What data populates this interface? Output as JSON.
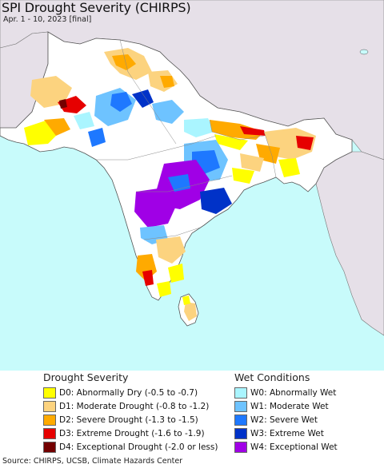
{
  "map": {
    "title": "SPI Drought Severity (CHIRPS)",
    "subtitle": "Apr. 1 - 10, 2023 [final]",
    "colors": {
      "ocean": "#c8fbfb",
      "land": "#ffffff",
      "outside_land": "#e6e0e8",
      "border": "#555555"
    }
  },
  "legend": {
    "drought": {
      "heading": "Drought Severity",
      "items": [
        {
          "label": "D0: Abnormally Dry (-0.5 to -0.7)",
          "color": "#ffff00"
        },
        {
          "label": "D1: Moderate Drought (-0.8 to -1.2)",
          "color": "#fcd37f"
        },
        {
          "label": "D2: Severe Drought (-1.3 to -1.5)",
          "color": "#ffaa00"
        },
        {
          "label": "D3: Extreme Drought (-1.6 to -1.9)",
          "color": "#e60000"
        },
        {
          "label": "D4: Exceptional Drought (-2.0 or less)",
          "color": "#730000"
        }
      ]
    },
    "wet": {
      "heading": "Wet Conditions",
      "items": [
        {
          "label": "W0: Abnormally Wet",
          "color": "#aaf5ff"
        },
        {
          "label": "W1: Moderate Wet",
          "color": "#6ec3ff"
        },
        {
          "label": "W2: Severe Wet",
          "color": "#1e78ff"
        },
        {
          "label": "W3: Extreme Wet",
          "color": "#0032c8"
        },
        {
          "label": "W4: Exceptional Wet",
          "color": "#a000e6"
        }
      ]
    }
  },
  "source": "Source: CHIRPS, UCSB, Climate Hazards Center"
}
